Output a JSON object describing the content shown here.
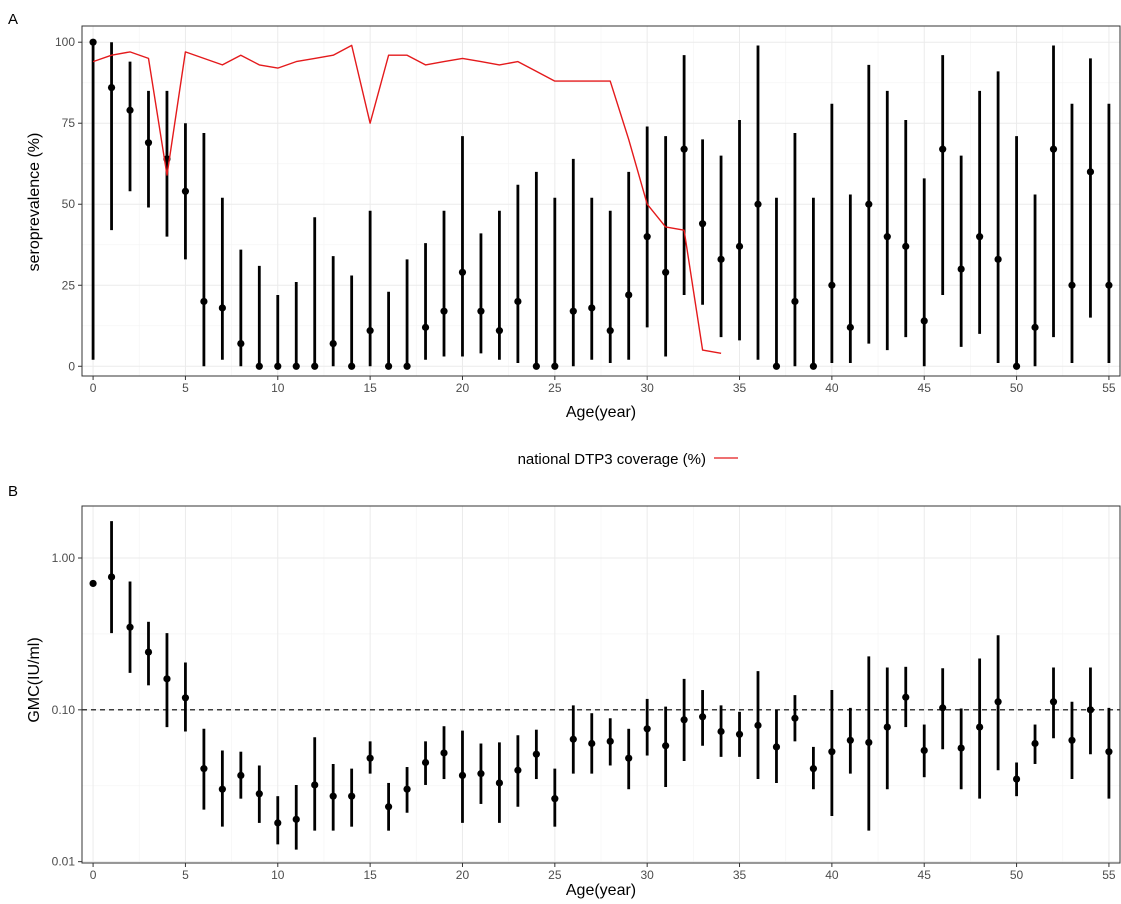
{
  "chart_data": [
    {
      "panel_label": "A",
      "type": "scatter",
      "xlabel": "Age(year)",
      "ylabel": "seroprevalence (%)",
      "xlim": [
        -0.6,
        55.6
      ],
      "ylim": [
        -3,
        105
      ],
      "x_ticks": [
        0,
        5,
        10,
        15,
        20,
        25,
        30,
        35,
        40,
        45,
        50,
        55
      ],
      "x_tick_labels": [
        "0",
        "5",
        "10",
        "15",
        "20",
        "25",
        "30",
        "35",
        "40",
        "45",
        "50",
        "55"
      ],
      "y_ticks": [
        0,
        25,
        50,
        75,
        100
      ],
      "y_tick_labels": [
        "0",
        "25",
        "50",
        "75",
        "100"
      ],
      "grid": true,
      "points": {
        "x": [
          0,
          1,
          2,
          3,
          4,
          5,
          6,
          7,
          8,
          9,
          10,
          11,
          12,
          13,
          14,
          15,
          16,
          17,
          18,
          19,
          20,
          21,
          22,
          23,
          24,
          25,
          26,
          27,
          28,
          29,
          30,
          31,
          32,
          33,
          34,
          35,
          36,
          37,
          38,
          39,
          40,
          41,
          42,
          43,
          44,
          45,
          46,
          47,
          48,
          49,
          50,
          51,
          52,
          53,
          54,
          55
        ],
        "y": [
          100,
          86,
          79,
          69,
          64,
          54,
          20,
          18,
          7,
          0,
          0,
          0,
          0,
          7,
          0,
          11,
          0,
          0,
          12,
          17,
          29,
          17,
          11,
          20,
          0,
          0,
          17,
          18,
          11,
          22,
          40,
          29,
          67,
          44,
          33,
          37,
          50,
          0,
          20,
          0,
          25,
          12,
          50,
          40,
          37,
          14,
          67,
          30,
          40,
          33,
          0,
          12,
          67,
          25,
          60,
          25
        ],
        "lower": [
          2,
          42,
          54,
          49,
          40,
          33,
          0,
          2,
          0,
          0,
          0,
          0,
          0,
          0,
          0,
          0,
          0,
          0,
          2,
          3,
          3,
          4,
          2,
          1,
          0,
          0,
          0,
          2,
          1,
          2,
          12,
          3,
          22,
          19,
          9,
          8,
          2,
          0,
          0,
          0,
          1,
          1,
          7,
          5,
          9,
          0,
          22,
          6,
          10,
          1,
          0,
          0,
          9,
          1,
          15,
          1
        ],
        "upper": [
          100,
          100,
          94,
          85,
          85,
          75,
          72,
          52,
          36,
          31,
          22,
          26,
          46,
          34,
          28,
          48,
          23,
          33,
          38,
          48,
          71,
          41,
          48,
          56,
          60,
          52,
          64,
          52,
          48,
          60,
          74,
          71,
          96,
          70,
          65,
          76,
          99,
          52,
          72,
          52,
          81,
          53,
          93,
          85,
          76,
          58,
          96,
          65,
          85,
          91,
          71,
          53,
          99,
          81,
          95,
          81
        ]
      },
      "series": [
        {
          "name": "national DTP3 coverage (%)",
          "color": "#e41a1c",
          "x": [
            0,
            1,
            2,
            3,
            4,
            5,
            6,
            7,
            8,
            9,
            10,
            11,
            12,
            13,
            14,
            15,
            16,
            17,
            18,
            19,
            20,
            21,
            22,
            23,
            24,
            25,
            26,
            27,
            28,
            29,
            30,
            31,
            32,
            33,
            34
          ],
          "y": [
            94,
            96,
            97,
            95,
            59,
            97,
            95,
            93,
            96,
            93,
            92,
            94,
            95,
            96,
            99,
            75,
            96,
            96,
            93,
            94,
            95,
            94,
            93,
            94,
            91,
            88,
            88,
            88,
            88,
            70,
            50,
            43,
            42,
            5,
            4
          ]
        }
      ],
      "colors": {
        "points": "#000000"
      }
    },
    {
      "panel_label": "B",
      "type": "scatter",
      "xlabel": "Age(year)",
      "ylabel": "GMC(IU/ml)",
      "log_y": true,
      "xlim": [
        -0.6,
        55.6
      ],
      "ylim": [
        0.0098,
        2.2
      ],
      "x_ticks": [
        0,
        5,
        10,
        15,
        20,
        25,
        30,
        35,
        40,
        45,
        50,
        55
      ],
      "x_tick_labels": [
        "0",
        "5",
        "10",
        "15",
        "20",
        "25",
        "30",
        "35",
        "40",
        "45",
        "50",
        "55"
      ],
      "y_ticks": [
        0.01,
        0.1,
        1
      ],
      "y_tick_labels": [
        "0.01",
        "0.10",
        "1.00"
      ],
      "reference_line": {
        "y": 0.1,
        "style": "dashed"
      },
      "grid": true,
      "points": {
        "x": [
          0,
          1,
          2,
          3,
          4,
          5,
          6,
          7,
          8,
          9,
          10,
          11,
          12,
          13,
          14,
          15,
          16,
          17,
          18,
          19,
          20,
          21,
          22,
          23,
          24,
          25,
          26,
          27,
          28,
          29,
          30,
          31,
          32,
          33,
          34,
          35,
          36,
          37,
          38,
          39,
          40,
          41,
          42,
          43,
          44,
          45,
          46,
          47,
          48,
          49,
          50,
          51,
          52,
          53,
          54,
          55
        ],
        "y": [
          0.68,
          0.75,
          0.35,
          0.24,
          0.16,
          0.12,
          0.041,
          0.03,
          0.037,
          0.028,
          0.018,
          0.019,
          0.032,
          0.027,
          0.027,
          0.048,
          0.023,
          0.03,
          0.045,
          0.052,
          0.037,
          0.038,
          0.033,
          0.04,
          0.051,
          0.026,
          0.064,
          0.06,
          0.062,
          0.048,
          0.075,
          0.058,
          0.086,
          0.09,
          0.072,
          0.069,
          0.079,
          0.057,
          0.088,
          0.041,
          0.053,
          0.063,
          0.061,
          0.077,
          0.121,
          0.054,
          0.103,
          0.056,
          0.077,
          0.113,
          0.035,
          0.06,
          0.113,
          0.063,
          0.1,
          0.053
        ],
        "lower": [
          null,
          0.32,
          0.175,
          0.145,
          0.077,
          0.072,
          0.022,
          0.017,
          0.026,
          0.018,
          0.013,
          0.012,
          0.016,
          0.016,
          0.017,
          0.038,
          0.016,
          0.021,
          0.032,
          0.035,
          0.018,
          0.024,
          0.018,
          0.023,
          0.035,
          0.017,
          0.038,
          0.038,
          0.043,
          0.03,
          0.05,
          0.031,
          0.046,
          0.058,
          0.049,
          0.049,
          0.035,
          0.033,
          0.062,
          0.03,
          0.02,
          0.038,
          0.016,
          0.03,
          0.077,
          0.036,
          0.055,
          0.03,
          0.026,
          0.04,
          0.027,
          0.044,
          0.065,
          0.035,
          0.051,
          0.026
        ],
        "upper": [
          null,
          1.75,
          0.7,
          0.38,
          0.32,
          0.205,
          0.075,
          0.054,
          0.053,
          0.043,
          0.027,
          0.032,
          0.066,
          0.044,
          0.041,
          0.062,
          0.033,
          0.042,
          0.062,
          0.078,
          0.073,
          0.06,
          0.061,
          0.068,
          0.074,
          0.041,
          0.107,
          0.095,
          0.088,
          0.075,
          0.118,
          0.105,
          0.16,
          0.135,
          0.107,
          0.097,
          0.18,
          0.1,
          0.125,
          0.057,
          0.135,
          0.103,
          0.225,
          0.19,
          0.192,
          0.08,
          0.188,
          0.102,
          0.218,
          0.31,
          0.045,
          0.08,
          0.19,
          0.113,
          0.19,
          0.103
        ]
      },
      "colors": {
        "points": "#000000",
        "reference_line": "#000000"
      }
    }
  ],
  "legend": {
    "label": "national DTP3 coverage (%)",
    "color": "#e41a1c",
    "placement": "between panels, centered"
  }
}
